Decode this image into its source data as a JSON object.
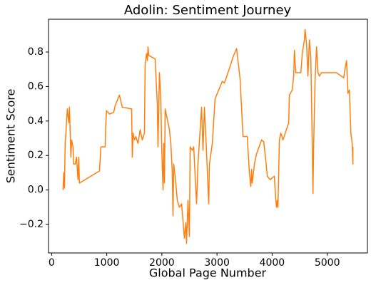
{
  "chart_data": {
    "type": "line",
    "title": "Adolin: Sentiment Journey",
    "x_label": "Global Page Number",
    "y_label": "Sentiment Score",
    "color": "#ff7f0e",
    "x": [
      207,
      220,
      233,
      246,
      259,
      285,
      311,
      324,
      350,
      363,
      389,
      401,
      427,
      453,
      466,
      479,
      492,
      505,
      868,
      894,
      972,
      984,
      997,
      1049,
      1127,
      1153,
      1230,
      1282,
      1451,
      1464,
      1477,
      1503,
      1528,
      1567,
      1606,
      1645,
      1684,
      1697,
      1723,
      1736,
      1749,
      1762,
      1878,
      1917,
      1930,
      1956,
      1982,
      1995,
      2021,
      2034,
      2047,
      2060,
      2137,
      2163,
      2189,
      2202,
      2215,
      2241,
      2280,
      2319,
      2358,
      2409,
      2435,
      2448,
      2474,
      2500,
      2513,
      2552,
      2578,
      2604,
      2630,
      2655,
      2720,
      2746,
      2772,
      2798,
      2850,
      2863,
      2915,
      2966,
      3031,
      3096,
      3135,
      3199,
      3251,
      3290,
      3355,
      3420,
      3472,
      3549,
      3588,
      3614,
      3627,
      3640,
      3679,
      3718,
      3808,
      3847,
      3886,
      3912,
      3964,
      4041,
      4067,
      4080,
      4093,
      4106,
      4132,
      4158,
      4197,
      4301,
      4313,
      4365,
      4391,
      4404,
      4430,
      4521,
      4547,
      4585,
      4598,
      4624,
      4650,
      4676,
      4702,
      4728,
      4741,
      4754,
      4780,
      4806,
      4832,
      4858,
      4896,
      5168,
      5298,
      5337,
      5350,
      5376,
      5402,
      5428,
      5453,
      5466,
      5466
    ],
    "values": [
      0,
      0.1,
      0.01,
      0.27,
      0.33,
      0.47,
      0.39,
      0.48,
      0.19,
      0.29,
      0.25,
      0.15,
      0.15,
      0.19,
      0.12,
      0.06,
      0.19,
      0.04,
      0.11,
      0.25,
      0.25,
      0.39,
      0.46,
      0.44,
      0.45,
      0.49,
      0.55,
      0.48,
      0.47,
      0.19,
      0.33,
      0.29,
      0.31,
      0.27,
      0.35,
      0.29,
      0.33,
      0.73,
      0.79,
      0.75,
      0.83,
      0.78,
      0.76,
      0.5,
      0.25,
      0.68,
      0.52,
      0.27,
      0.0,
      0.27,
      0.04,
      0.47,
      0.35,
      0.27,
      0.1,
      -0.15,
      0.15,
      0.08,
      -0.06,
      -0.1,
      -0.08,
      -0.28,
      -0.19,
      -0.31,
      -0.06,
      -0.27,
      0.25,
      0.23,
      0.25,
      0.08,
      -0.08,
      0.15,
      0.48,
      0.23,
      0.48,
      0.31,
      -0.08,
      0.15,
      0.27,
      0.53,
      0.58,
      0.63,
      0.62,
      0.68,
      0.73,
      0.77,
      0.82,
      0.64,
      0.31,
      0.31,
      0.1,
      0.02,
      0.12,
      0.04,
      0.15,
      0.21,
      0.29,
      0.28,
      0.17,
      0.08,
      0.06,
      0.08,
      -0.06,
      -0.1,
      -0.06,
      -0.1,
      0.29,
      0.33,
      0.29,
      0.39,
      0.55,
      0.58,
      0.66,
      0.81,
      0.68,
      0.68,
      0.79,
      0.87,
      0.93,
      0.85,
      0.66,
      0.87,
      0.77,
      0.27,
      -0.02,
      0.27,
      0.64,
      0.83,
      0.68,
      0.66,
      0.68,
      0.68,
      0.65,
      0.73,
      0.75,
      0.56,
      0.58,
      0.33,
      0.27,
      0.15,
      0.25
    ],
    "xlim": [
      -56,
      5729
    ],
    "xticks": [
      0,
      1000,
      2000,
      3000,
      4000,
      5000
    ],
    "ylim": [
      -0.365,
      0.99
    ],
    "yticks": [
      {
        "value": -0.2,
        "label": "−0.2"
      },
      {
        "value": 0,
        "label": "0.0"
      },
      0.2,
      0.4,
      0.6,
      0.8
    ],
    "grid": false
  }
}
